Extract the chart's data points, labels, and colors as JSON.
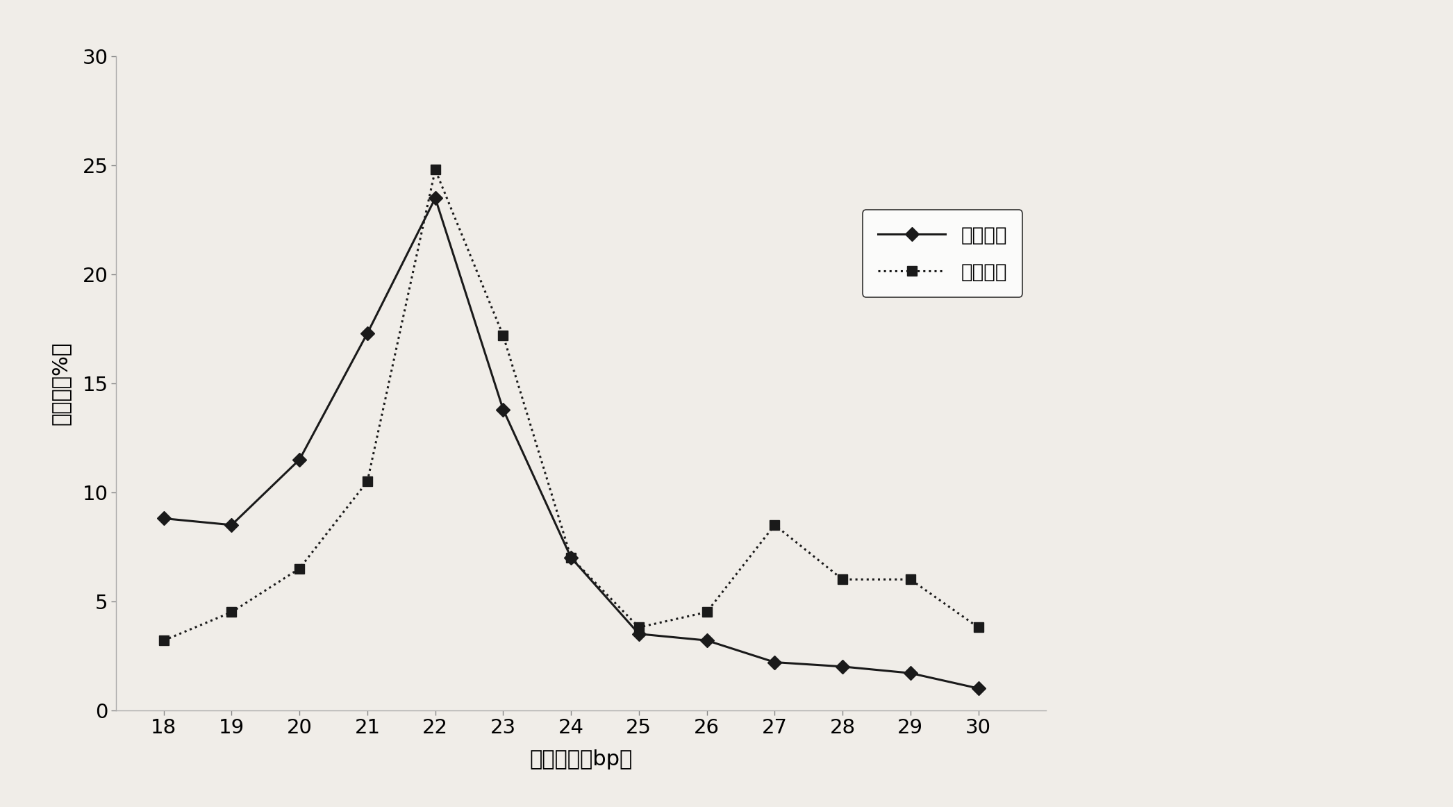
{
  "x": [
    18,
    19,
    20,
    21,
    22,
    23,
    24,
    25,
    26,
    27,
    28,
    29,
    30
  ],
  "normal_serum": [
    8.8,
    8.5,
    11.5,
    17.3,
    23.5,
    13.8,
    7.0,
    3.5,
    3.2,
    2.2,
    2.0,
    1.7,
    1.0
  ],
  "lung_cancer_serum": [
    3.2,
    4.5,
    6.5,
    10.5,
    24.8,
    17.2,
    7.0,
    3.8,
    4.5,
    8.5,
    6.0,
    6.0,
    3.8
  ],
  "xlabel": "片段长度（bp）",
  "ylabel": "百分比（%）",
  "ylim": [
    0,
    30
  ],
  "yticks": [
    0,
    5,
    10,
    15,
    20,
    25,
    30
  ],
  "legend_normal": "正常血清",
  "legend_cancer": "肺癌血清",
  "background_color": "#f0ede8",
  "line_color": "#1a1a1a",
  "marker_normal": "D",
  "marker_cancer": "s",
  "normal_linestyle": "-",
  "cancer_linestyle": ":",
  "linewidth": 2.2,
  "markersize": 10
}
